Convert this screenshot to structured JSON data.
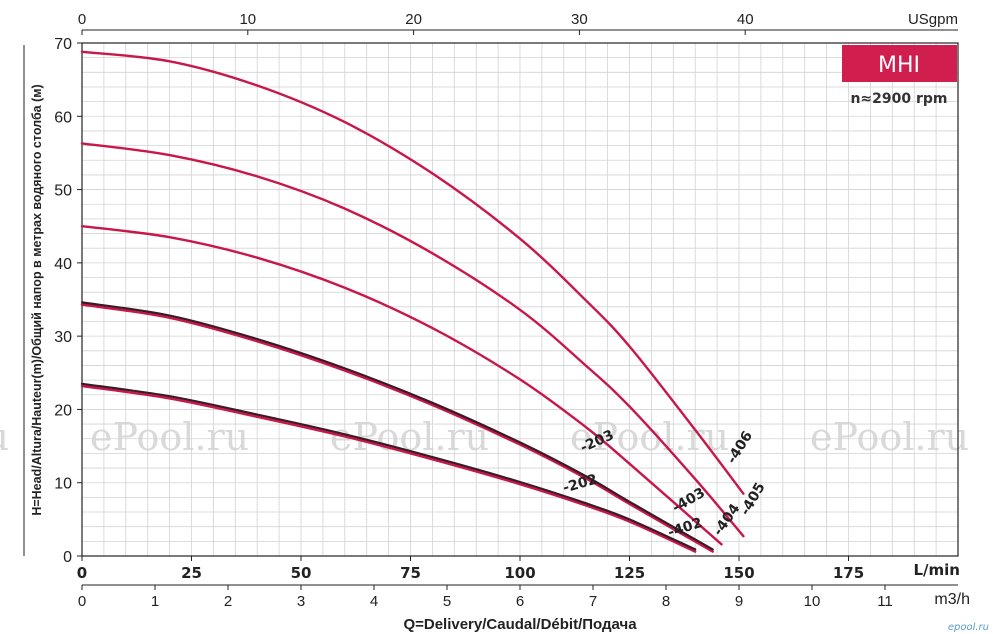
{
  "chart_data": {
    "type": "line",
    "title": "MHI",
    "subtitle": "n≈2900 rpm",
    "ylabel": "H=Head/Altura/Hauteur(m)/Общий напор в метрах водяного столба (м)",
    "xlabel": "Q=Delivery/Caudal/Débit/Подача",
    "watermark": "ePool.ru",
    "corner_text": "epool.ru",
    "grid": true,
    "ylim": [
      0,
      70
    ],
    "y_ticks": [
      "0",
      "10",
      "20",
      "30",
      "40",
      "50",
      "60",
      "70"
    ],
    "x_ticks_lmin": [
      "0",
      "25",
      "50",
      "75",
      "100",
      "125",
      "150",
      "175"
    ],
    "x_unit_lmin": "L/min",
    "x_ticks_m3h": [
      "0",
      "1",
      "2",
      "3",
      "4",
      "5",
      "6",
      "7",
      "8",
      "9",
      "10",
      "11"
    ],
    "x_unit_m3h": "m3/h",
    "x_ticks_usgpm": [
      "0",
      "10",
      "20",
      "30",
      "40"
    ],
    "x_unit_usgpm": "USgpm",
    "xlim_lmin": [
      0,
      200
    ],
    "colors": {
      "curve": "#c8174a",
      "dark_curve": "#3a1a24",
      "badge": "#d01f4e",
      "grid": "#d3d3d3"
    },
    "series": [
      {
        "name": "-202",
        "dark": true,
        "x": [
          0,
          20,
          40,
          60,
          80,
          100,
          115,
          125,
          140
        ],
        "y": [
          23.2,
          21.5,
          19,
          16.3,
          13.2,
          9.8,
          6.9,
          4.7,
          0.6
        ]
      },
      {
        "name": "-402",
        "dark": false,
        "x": [
          0,
          20,
          40,
          60,
          80,
          100,
          115,
          125,
          140
        ],
        "y": [
          23.2,
          21.5,
          19,
          16.3,
          13.2,
          9.8,
          6.9,
          4.7,
          0.6
        ]
      },
      {
        "name": "-203",
        "dark": true,
        "x": [
          0,
          20,
          40,
          60,
          80,
          100,
          115,
          125,
          144
        ],
        "y": [
          34.3,
          32.5,
          29.3,
          25.3,
          20.6,
          15.2,
          10.6,
          7.1,
          0.6
        ]
      },
      {
        "name": "-403",
        "dark": false,
        "x": [
          0,
          20,
          40,
          60,
          80,
          100,
          115,
          125,
          144
        ],
        "y": [
          34.3,
          32.5,
          29.3,
          25.3,
          20.6,
          15.2,
          10.6,
          7.1,
          0.6
        ]
      },
      {
        "name": "-404",
        "dark": false,
        "x": [
          0,
          20,
          40,
          60,
          80,
          100,
          115,
          125,
          146
        ],
        "y": [
          45,
          43.5,
          40.7,
          36.6,
          31.1,
          24.1,
          17.6,
          12.6,
          1.6
        ]
      },
      {
        "name": "-405",
        "dark": false,
        "x": [
          0,
          20,
          40,
          60,
          80,
          100,
          115,
          125,
          140,
          151
        ],
        "y": [
          56.3,
          54.7,
          51.8,
          47.4,
          41.3,
          33.6,
          26,
          20.4,
          10.5,
          2.7
        ]
      },
      {
        "name": "-406",
        "dark": false,
        "x": [
          0,
          20,
          40,
          60,
          80,
          100,
          115,
          125,
          140,
          151
        ],
        "y": [
          68.8,
          67.5,
          64.2,
          59.2,
          52.2,
          43.3,
          34.9,
          28.6,
          17.2,
          8.5
        ]
      }
    ],
    "labels": [
      {
        "text": "-202",
        "at": [
          114,
          9.3
        ],
        "angle": -16
      },
      {
        "text": "-203",
        "at": [
          118,
          15.1
        ],
        "angle": -24
      },
      {
        "text": "-402",
        "at": [
          138,
          3.3
        ],
        "angle": -18
      },
      {
        "text": "-403",
        "at": [
          139,
          7.1
        ],
        "angle": -30
      },
      {
        "text": "-404",
        "at": [
          148,
          4.6
        ],
        "angle": -55
      },
      {
        "text": "-405",
        "at": [
          154,
          7.5
        ],
        "angle": -60
      },
      {
        "text": "-406",
        "at": [
          151,
          14.5
        ],
        "angle": -58
      }
    ]
  }
}
